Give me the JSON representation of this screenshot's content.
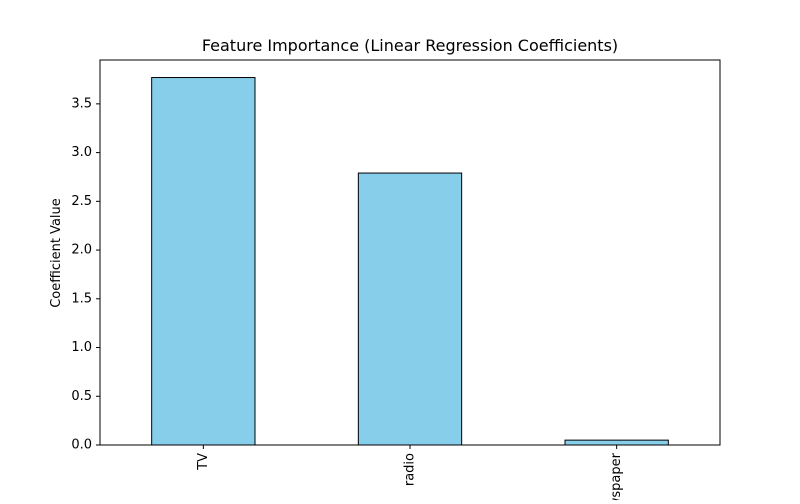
{
  "chart_data": {
    "type": "bar",
    "title": "Feature Importance (Linear Regression Coefficients)",
    "xlabel": "",
    "ylabel": "Coefficient Value",
    "categories": [
      "TV",
      "radio",
      "newspaper"
    ],
    "values": [
      3.77,
      2.79,
      0.05
    ],
    "ylim": [
      0,
      3.95
    ],
    "yticks": [
      "0.0",
      "0.5",
      "1.0",
      "1.5",
      "2.0",
      "2.5",
      "3.0",
      "3.5"
    ],
    "bar_color": "#87ceeb",
    "edge_color": "#000000",
    "grid": false,
    "legend": "none"
  }
}
